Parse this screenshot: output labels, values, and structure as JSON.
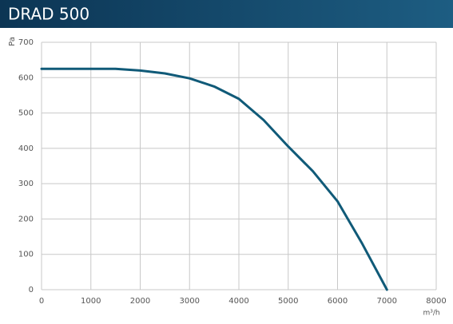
{
  "chart_data": {
    "type": "line",
    "title": "DRAD 500",
    "y_label": "Pa",
    "x_label": "m³/h",
    "x": [
      0,
      1000,
      1500,
      2000,
      2500,
      3000,
      3500,
      4000,
      4500,
      5000,
      5500,
      6000,
      6500,
      7000
    ],
    "series": [
      {
        "color": "#105a78",
        "values": [
          625,
          625,
          625,
          620,
          612,
          598,
          575,
          540,
          480,
          405,
          335,
          250,
          130,
          0
        ]
      }
    ],
    "xlim": [
      0,
      8000
    ],
    "ylim": [
      0,
      700
    ],
    "xticks": [
      0,
      1000,
      2000,
      3000,
      4000,
      5000,
      6000,
      7000,
      8000
    ],
    "yticks": [
      0,
      100,
      200,
      300,
      400,
      500,
      600,
      700
    ],
    "grid": true
  }
}
